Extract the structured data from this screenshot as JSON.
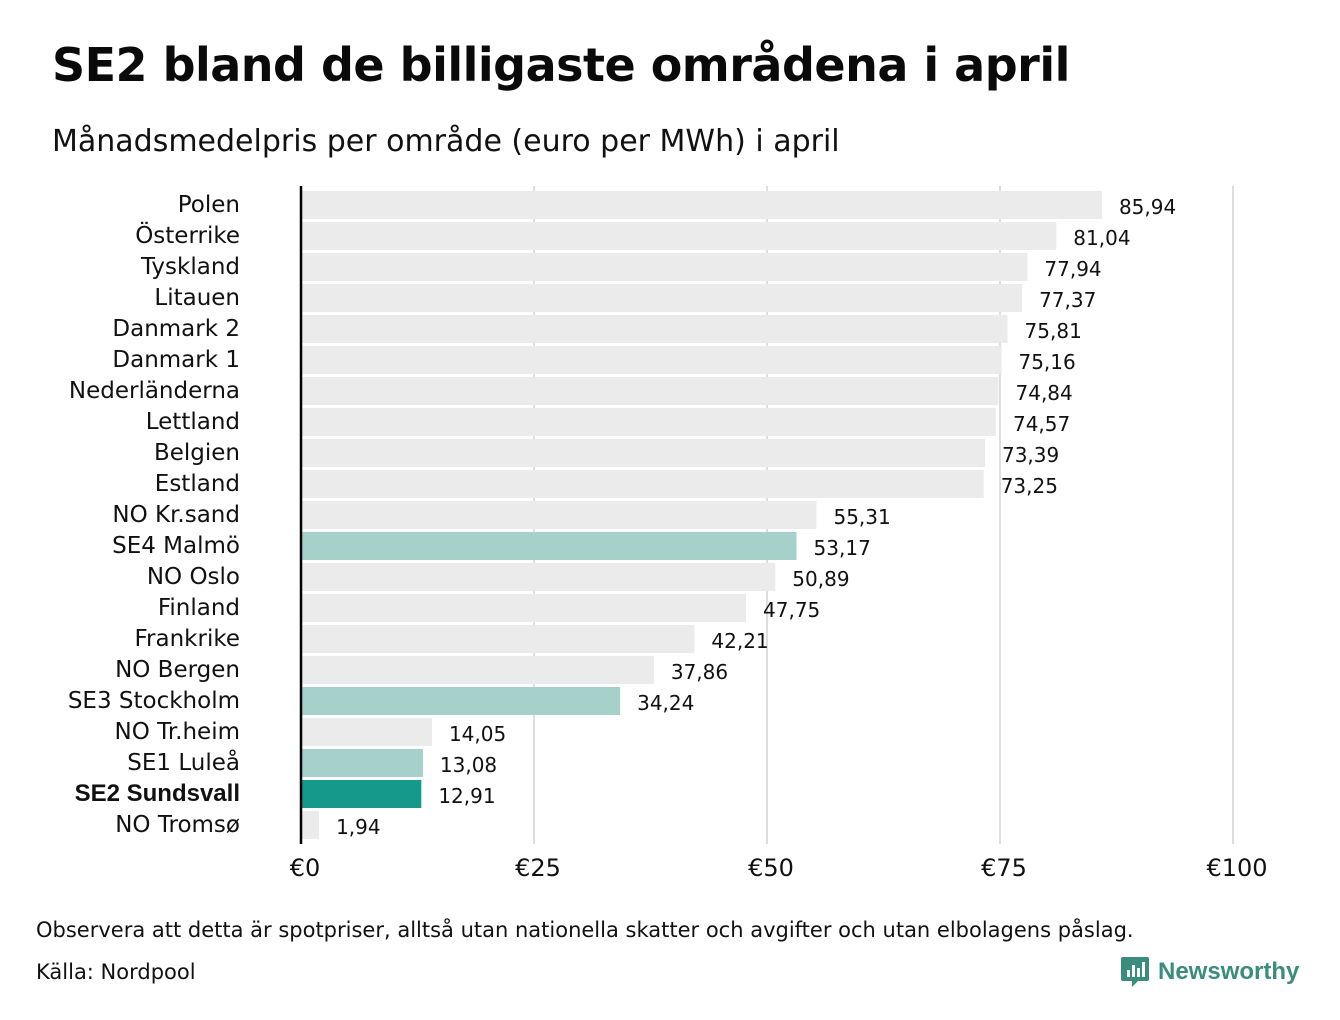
{
  "header": {
    "title": "SE2 bland de billigaste områdena i april",
    "subtitle": "Månadsmedelpris per område (euro per MWh) i april"
  },
  "footer": {
    "note": "Observera att detta är spotpriser, alltså utan nationella skatter och avgifter och utan elbolagens påslag.",
    "source": "Källa: Nordpool",
    "brand": "Newsworthy"
  },
  "colors": {
    "default_bar": "#ebebeb",
    "swedish_bar": "#a6d0ca",
    "highlight_bar": "#15998a",
    "grid": "#c8c8c8",
    "axis": "#000000",
    "brand": "#3a8c7e"
  },
  "chart_data": {
    "type": "bar",
    "orientation": "horizontal",
    "categories": [
      "Polen",
      "Österrike",
      "Tyskland",
      "Litauen",
      "Danmark 2",
      "Danmark 1",
      "Nederländerna",
      "Lettland",
      "Belgien",
      "Estland",
      "NO Kr.sand",
      "SE4 Malmö",
      "NO Oslo",
      "Finland",
      "Frankrike",
      "NO Bergen",
      "SE3 Stockholm",
      "NO Tr.heim",
      "SE1 Luleå",
      "SE2 Sundsvall",
      "NO Tromsø"
    ],
    "values": [
      85.94,
      81.04,
      77.94,
      77.37,
      75.81,
      75.16,
      74.84,
      74.57,
      73.39,
      73.25,
      55.31,
      53.17,
      50.89,
      47.75,
      42.21,
      37.86,
      34.24,
      14.05,
      13.08,
      12.91,
      1.94
    ],
    "value_labels": [
      "85,94",
      "81,04",
      "77,94",
      "77,37",
      "75,81",
      "75,16",
      "74,84",
      "74,57",
      "73,39",
      "73,25",
      "55,31",
      "53,17",
      "50,89",
      "47,75",
      "42,21",
      "37,86",
      "34,24",
      "14,05",
      "13,08",
      "12,91",
      "1,94"
    ],
    "bar_group": [
      "default",
      "default",
      "default",
      "default",
      "default",
      "default",
      "default",
      "default",
      "default",
      "default",
      "default",
      "swedish",
      "default",
      "default",
      "default",
      "default",
      "swedish",
      "default",
      "swedish",
      "highlight",
      "default"
    ],
    "xlim": [
      0,
      100
    ],
    "x_ticks": [
      0,
      25,
      50,
      75,
      100
    ],
    "x_tick_labels": [
      "€0",
      "€25",
      "€50",
      "€75",
      "€100"
    ],
    "xlabel": "",
    "ylabel": "",
    "grid": "vertical"
  }
}
